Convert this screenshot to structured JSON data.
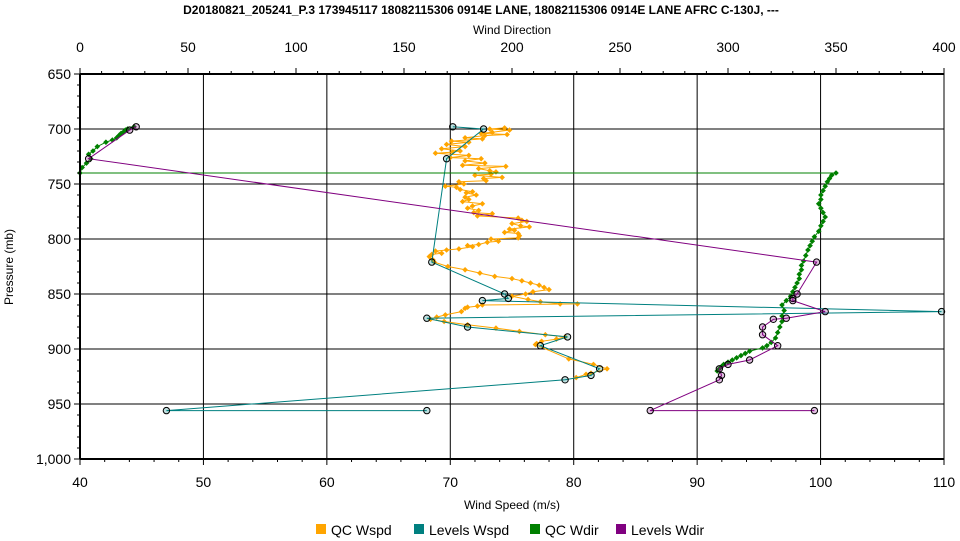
{
  "chart_data": {
    "type": "line",
    "title": "D20180821_205241_P.3 173945117 18082115306 0914E LANE, 18082115306 0914E LANE AFRC C-130J, ---",
    "xlabel_bottom": "Wind Speed (m/s)",
    "xlabel_top": "Wind Direction",
    "ylabel": "Pressure (mb)",
    "x_bottom": {
      "range": [
        40,
        110
      ],
      "ticks": [
        40,
        50,
        60,
        70,
        80,
        90,
        100,
        110
      ]
    },
    "x_top": {
      "range": [
        0,
        400
      ],
      "ticks": [
        0,
        50,
        100,
        150,
        200,
        250,
        300,
        350,
        400
      ]
    },
    "y": {
      "range": [
        650,
        1000
      ],
      "inverted": true,
      "ticks": [
        650,
        700,
        750,
        800,
        850,
        900,
        950,
        1000
      ],
      "tick_labels": [
        "650",
        "700",
        "750",
        "800",
        "850",
        "900",
        "950",
        "1,000"
      ]
    },
    "grid": true,
    "legend_position": "bottom",
    "colors": {
      "qc_wspd": "#FFA500",
      "levels_wspd": "#008080",
      "qc_wdir": "#008000",
      "levels_wdir": "#800080"
    },
    "series": [
      {
        "name": "QC Wspd",
        "axis": "bottom",
        "points": [
          [
            74.4,
            699
          ],
          [
            73.2,
            700
          ],
          [
            74.8,
            701
          ],
          [
            73.4,
            703
          ],
          [
            72.5,
            704
          ],
          [
            74.6,
            705
          ],
          [
            72.8,
            706
          ],
          [
            71.2,
            708
          ],
          [
            72.6,
            709
          ],
          [
            70.1,
            711
          ],
          [
            71.5,
            712
          ],
          [
            69.7,
            714
          ],
          [
            71.2,
            716
          ],
          [
            69.3,
            718
          ],
          [
            70.8,
            720
          ],
          [
            70.2,
            721
          ],
          [
            68.8,
            722
          ],
          [
            71.5,
            724
          ],
          [
            70.0,
            726
          ],
          [
            72.5,
            727
          ],
          [
            71.2,
            729
          ],
          [
            72.8,
            731
          ],
          [
            71.0,
            733
          ],
          [
            74.5,
            734
          ],
          [
            72.3,
            736
          ],
          [
            73.2,
            738
          ],
          [
            73.7,
            739
          ],
          [
            73.3,
            741
          ],
          [
            72.0,
            742
          ],
          [
            74.2,
            744
          ],
          [
            72.7,
            745
          ],
          [
            72.9,
            747
          ],
          [
            70.7,
            748
          ],
          [
            71.1,
            750
          ],
          [
            69.6,
            752
          ],
          [
            70.5,
            753
          ],
          [
            70.8,
            755
          ],
          [
            71.8,
            757
          ],
          [
            71.3,
            758
          ],
          [
            72.1,
            760
          ],
          [
            71.2,
            762
          ],
          [
            71.5,
            764
          ],
          [
            71.0,
            766
          ],
          [
            72.6,
            768
          ],
          [
            71.8,
            770
          ],
          [
            71.4,
            772
          ],
          [
            72.3,
            774
          ],
          [
            71.9,
            776
          ],
          [
            73.4,
            777
          ],
          [
            72.2,
            779
          ],
          [
            75.5,
            781
          ],
          [
            75.8,
            783
          ],
          [
            76.2,
            784
          ],
          [
            75.0,
            786
          ],
          [
            75.7,
            788
          ],
          [
            76.4,
            789
          ],
          [
            74.8,
            791
          ],
          [
            75.2,
            792
          ],
          [
            74.4,
            794
          ],
          [
            75.5,
            795
          ],
          [
            75.6,
            797
          ],
          [
            75.5,
            799
          ],
          [
            73.3,
            800
          ],
          [
            73.9,
            802
          ],
          [
            73.0,
            803
          ],
          [
            72.3,
            805
          ],
          [
            71.4,
            806
          ],
          [
            71.8,
            807
          ],
          [
            70.7,
            809
          ],
          [
            69.7,
            810
          ],
          [
            68.8,
            811
          ],
          [
            69.3,
            813
          ],
          [
            68.5,
            814
          ],
          [
            68.3,
            816
          ],
          [
            68.6,
            819
          ],
          [
            68.7,
            821
          ],
          [
            69.8,
            825
          ],
          [
            71.2,
            828
          ],
          [
            72.4,
            831
          ],
          [
            73.6,
            834
          ],
          [
            75.0,
            836
          ],
          [
            75.8,
            838
          ],
          [
            76.5,
            840
          ],
          [
            77.2,
            842
          ],
          [
            77.6,
            844
          ],
          [
            78.0,
            846
          ],
          [
            76.7,
            848
          ],
          [
            76.1,
            850
          ],
          [
            75.0,
            852
          ],
          [
            76.3,
            855
          ],
          [
            77.3,
            857
          ],
          [
            78.9,
            859
          ],
          [
            80.3,
            859
          ],
          [
            72.6,
            860
          ],
          [
            72.2,
            861
          ],
          [
            71.4,
            862
          ],
          [
            71.2,
            863
          ],
          [
            70.9,
            866
          ],
          [
            69.6,
            869
          ],
          [
            68.9,
            871
          ],
          [
            68.4,
            873
          ],
          [
            69.5,
            875
          ],
          [
            71.4,
            878
          ],
          [
            73.7,
            881
          ],
          [
            75.6,
            884
          ],
          [
            77.7,
            887
          ],
          [
            79.3,
            889
          ],
          [
            78.6,
            891
          ],
          [
            77.4,
            893
          ],
          [
            77.0,
            895
          ],
          [
            76.9,
            896
          ],
          [
            79.6,
            909
          ],
          [
            81.6,
            914
          ],
          [
            82.7,
            918
          ],
          [
            81.4,
            922
          ],
          [
            81.0,
            923
          ],
          [
            80.2,
            926
          ]
        ]
      },
      {
        "name": "Levels Wspd",
        "axis": "bottom",
        "points": [
          [
            70.2,
            698
          ],
          [
            72.7,
            700
          ],
          [
            69.7,
            727
          ],
          [
            68.5,
            821
          ],
          [
            74.4,
            850
          ],
          [
            74.7,
            854
          ],
          [
            72.6,
            856
          ],
          [
            109.8,
            866
          ],
          [
            68.1,
            872
          ],
          [
            71.4,
            880
          ],
          [
            79.5,
            889
          ],
          [
            77.3,
            897
          ],
          [
            82.1,
            918
          ],
          [
            81.4,
            924
          ],
          [
            79.3,
            928
          ],
          [
            47.0,
            956
          ],
          [
            68.1,
            956
          ]
        ]
      },
      {
        "name": "QC Wdir",
        "axis": "top",
        "points": [
          [
            25,
            698
          ],
          [
            22,
            700
          ],
          [
            21,
            701
          ],
          [
            20,
            703
          ],
          [
            19,
            704
          ],
          [
            18,
            706
          ],
          [
            17,
            708
          ],
          [
            15,
            710
          ],
          [
            12,
            712
          ],
          [
            8,
            716
          ],
          [
            6,
            720
          ],
          [
            4,
            723
          ],
          [
            5,
            727
          ],
          [
            3,
            731
          ],
          [
            1,
            735
          ],
          [
            0,
            740
          ],
          [
            350,
            740
          ],
          [
            348,
            742
          ],
          [
            347,
            745
          ],
          [
            346,
            748
          ],
          [
            345,
            752
          ],
          [
            344,
            756
          ],
          [
            343,
            760
          ],
          [
            343,
            764
          ],
          [
            342,
            768
          ],
          [
            343,
            772
          ],
          [
            344,
            776
          ],
          [
            345,
            780
          ],
          [
            344,
            784
          ],
          [
            343,
            788
          ],
          [
            342,
            793
          ],
          [
            340,
            798
          ],
          [
            339,
            802
          ],
          [
            338,
            806
          ],
          [
            337,
            810
          ],
          [
            336,
            815
          ],
          [
            335,
            820
          ],
          [
            334,
            824
          ],
          [
            334,
            828
          ],
          [
            333,
            832
          ],
          [
            333,
            836
          ],
          [
            332,
            840
          ],
          [
            331,
            844
          ],
          [
            330,
            848
          ],
          [
            329,
            852
          ],
          [
            327,
            856
          ],
          [
            325,
            860
          ],
          [
            326,
            865
          ],
          [
            325,
            870
          ],
          [
            325,
            875
          ],
          [
            324,
            880
          ],
          [
            323,
            885
          ],
          [
            322,
            890
          ],
          [
            320,
            894
          ],
          [
            318,
            897
          ],
          [
            316,
            899
          ],
          [
            310,
            902
          ],
          [
            308,
            904
          ],
          [
            306,
            906
          ],
          [
            304,
            908
          ],
          [
            302,
            910
          ],
          [
            300,
            912
          ],
          [
            298,
            914
          ],
          [
            297,
            916
          ],
          [
            296,
            918
          ],
          [
            295,
            920
          ]
        ]
      },
      {
        "name": "Levels Wdir",
        "axis": "top",
        "points": [
          [
            26,
            698
          ],
          [
            23,
            701
          ],
          [
            4,
            727
          ],
          [
            341,
            821
          ],
          [
            332,
            850
          ],
          [
            330,
            854
          ],
          [
            330,
            856
          ],
          [
            345,
            866
          ],
          [
            327,
            872
          ],
          [
            321,
            873
          ],
          [
            316,
            880
          ],
          [
            316,
            887
          ],
          [
            323,
            897
          ],
          [
            310,
            910
          ],
          [
            300,
            914
          ],
          [
            296,
            918
          ],
          [
            297,
            924
          ],
          [
            296,
            928
          ],
          [
            264,
            956
          ],
          [
            340,
            956
          ]
        ]
      }
    ]
  }
}
